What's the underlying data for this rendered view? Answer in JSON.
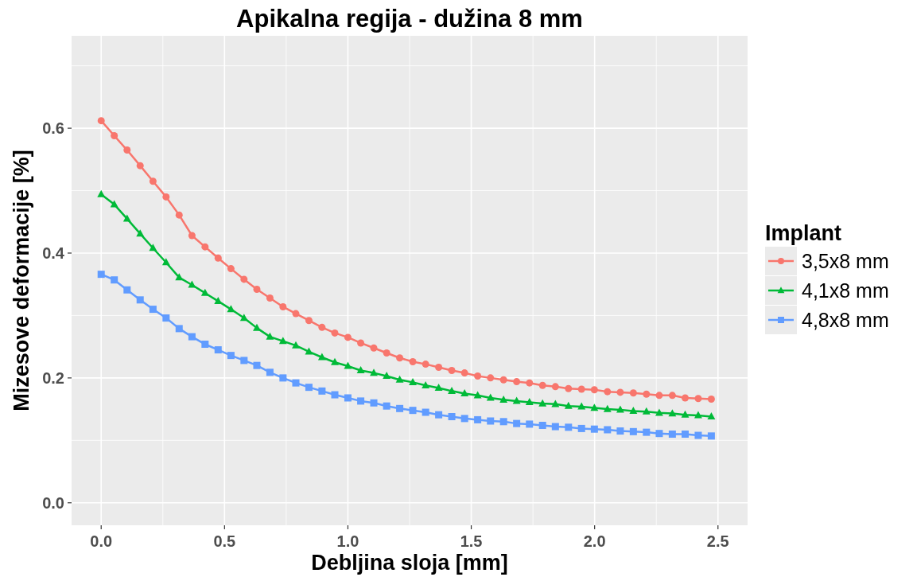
{
  "chart_data": {
    "type": "line",
    "title": "Apikalna regija - dužina 8 mm",
    "xlabel": "Debljina sloja [mm]",
    "ylabel": "Mizesove deformacije [%]",
    "legend_title": "Implant",
    "x": [
      0,
      0.053,
      0.105,
      0.158,
      0.21,
      0.263,
      0.316,
      0.368,
      0.421,
      0.474,
      0.526,
      0.579,
      0.631,
      0.684,
      0.737,
      0.789,
      0.842,
      0.895,
      0.947,
      1.0,
      1.052,
      1.105,
      1.157,
      1.21,
      1.263,
      1.315,
      1.368,
      1.421,
      1.473,
      1.526,
      1.578,
      1.631,
      1.684,
      1.736,
      1.789,
      1.841,
      1.894,
      1.947,
      1.999,
      2.052,
      2.104,
      2.157,
      2.21,
      2.262,
      2.315,
      2.367,
      2.42,
      2.473
    ],
    "series": [
      {
        "name": "3,5x8 mm",
        "color": "#f8766d",
        "marker": "circle",
        "values": [
          0.612,
          0.588,
          0.565,
          0.54,
          0.515,
          0.49,
          0.461,
          0.428,
          0.41,
          0.392,
          0.375,
          0.358,
          0.342,
          0.328,
          0.314,
          0.303,
          0.292,
          0.281,
          0.272,
          0.265,
          0.256,
          0.248,
          0.24,
          0.232,
          0.226,
          0.222,
          0.217,
          0.212,
          0.208,
          0.203,
          0.2,
          0.197,
          0.194,
          0.192,
          0.188,
          0.186,
          0.183,
          0.182,
          0.181,
          0.178,
          0.177,
          0.176,
          0.174,
          0.172,
          0.172,
          0.168,
          0.167,
          0.166
        ]
      },
      {
        "name": "4,1x8 mm",
        "color": "#00ba38",
        "marker": "triangle",
        "values": [
          0.494,
          0.478,
          0.455,
          0.431,
          0.408,
          0.385,
          0.361,
          0.349,
          0.336,
          0.323,
          0.31,
          0.296,
          0.28,
          0.266,
          0.259,
          0.252,
          0.242,
          0.233,
          0.225,
          0.219,
          0.212,
          0.208,
          0.203,
          0.197,
          0.193,
          0.188,
          0.184,
          0.179,
          0.175,
          0.172,
          0.168,
          0.165,
          0.163,
          0.161,
          0.159,
          0.158,
          0.155,
          0.154,
          0.152,
          0.15,
          0.149,
          0.147,
          0.146,
          0.144,
          0.143,
          0.141,
          0.14,
          0.138
        ]
      },
      {
        "name": "4,8x8 mm",
        "color": "#619cff",
        "marker": "square",
        "values": [
          0.366,
          0.357,
          0.341,
          0.325,
          0.31,
          0.296,
          0.279,
          0.266,
          0.254,
          0.245,
          0.236,
          0.228,
          0.22,
          0.209,
          0.2,
          0.192,
          0.185,
          0.179,
          0.173,
          0.168,
          0.163,
          0.16,
          0.155,
          0.151,
          0.148,
          0.145,
          0.141,
          0.138,
          0.135,
          0.133,
          0.131,
          0.13,
          0.127,
          0.126,
          0.124,
          0.122,
          0.121,
          0.119,
          0.118,
          0.117,
          0.115,
          0.114,
          0.113,
          0.111,
          0.11,
          0.11,
          0.108,
          0.107
        ]
      }
    ],
    "xlim": [
      -0.12,
      2.62
    ],
    "ylim": [
      -0.036,
      0.748
    ],
    "xticks": [
      {
        "value": 0,
        "label": "0.0"
      },
      0.5,
      {
        "value": 1,
        "label": "1.0"
      },
      1.5,
      {
        "value": 2,
        "label": "2.0"
      },
      2.5
    ],
    "yticks": [
      {
        "value": 0,
        "label": "0.0"
      },
      0.2,
      0.4,
      0.6
    ],
    "grid": true,
    "legend": "right",
    "line_style": "solid"
  }
}
